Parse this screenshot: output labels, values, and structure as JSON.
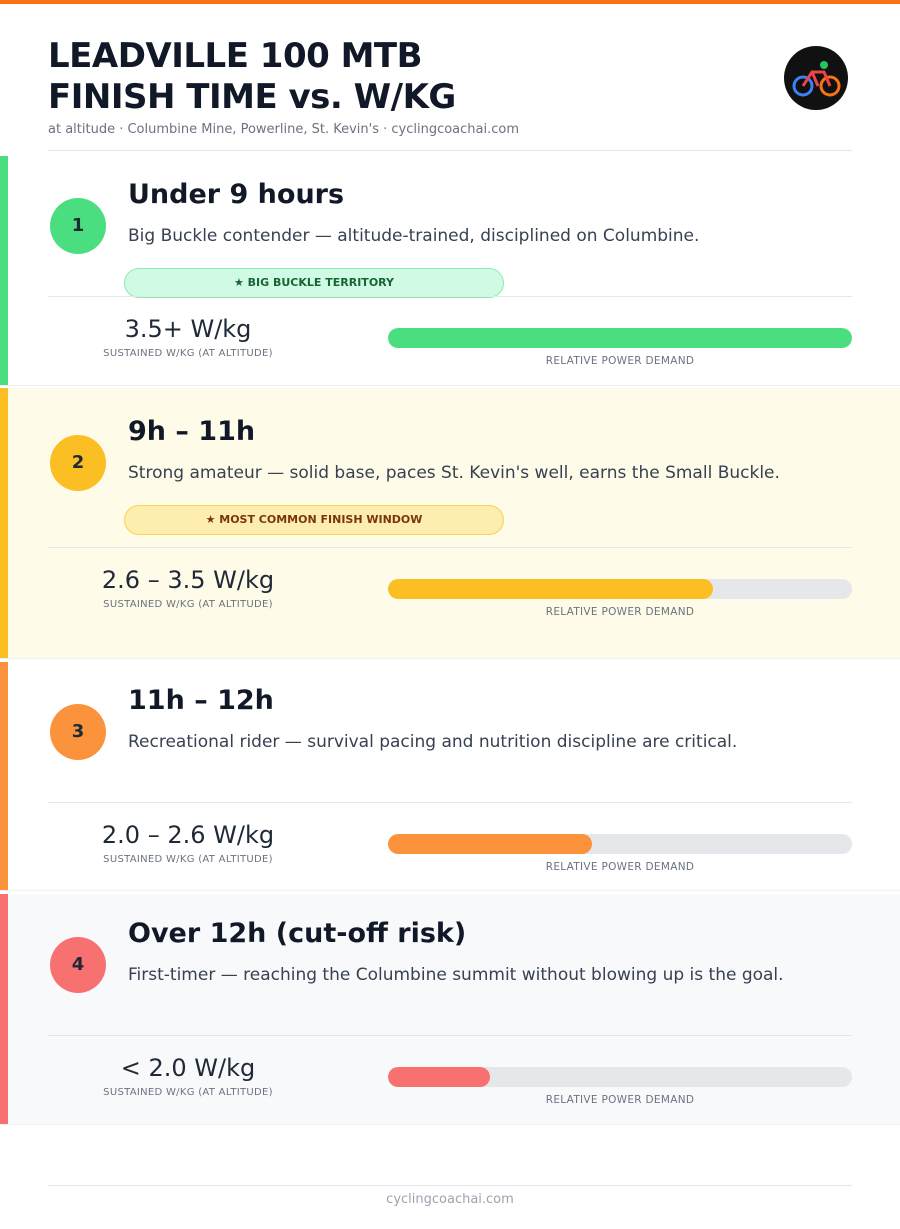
{
  "header": {
    "title_lines": [
      "LEADVILLE 100 MTB",
      "FINISH TIME vs. W/KG"
    ],
    "subtitle": "at altitude · Columbine Mine, Powerline, St. Kevin's · cyclingcoachai.com"
  },
  "tiers": [
    {
      "number": "1",
      "heading": "Under 9 hours",
      "description": "Big Buckle contender — altitude-trained, disciplined on Columbine.",
      "badge": "★ BIG BUCKLE TERRITORY",
      "wkg": "3.5+ W/kg",
      "wkg_label": "SUSTAINED W/KG (AT ALTITUDE)",
      "demand": 100,
      "bar_label": "RELATIVE POWER DEMAND",
      "color": "#4ade80"
    },
    {
      "number": "2",
      "heading": "9h – 11h",
      "description": "Strong amateur — solid base, paces St. Kevin's well, earns the Small Buckle.",
      "badge": "★ MOST COMMON FINISH WINDOW",
      "wkg": "2.6 – 3.5 W/kg",
      "wkg_label": "SUSTAINED W/KG (AT ALTITUDE)",
      "demand": 70,
      "bar_label": "RELATIVE POWER DEMAND",
      "color": "#fbbf24"
    },
    {
      "number": "3",
      "heading": "11h – 12h",
      "description": "Recreational rider — survival pacing and nutrition discipline are critical.",
      "wkg": "2.0 – 2.6 W/kg",
      "wkg_label": "SUSTAINED W/KG (AT ALTITUDE)",
      "demand": 44,
      "bar_label": "RELATIVE POWER DEMAND",
      "color": "#fb923c"
    },
    {
      "number": "4",
      "heading": "Over 12h (cut-off risk)",
      "description": "First-timer — reaching the Columbine summit without blowing up is the goal.",
      "wkg": "< 2.0 W/kg",
      "wkg_label": "SUSTAINED W/KG (AT ALTITUDE)",
      "demand": 22,
      "bar_label": "RELATIVE POWER DEMAND",
      "color": "#f87171"
    }
  ],
  "footer": "cyclingcoachai.com"
}
